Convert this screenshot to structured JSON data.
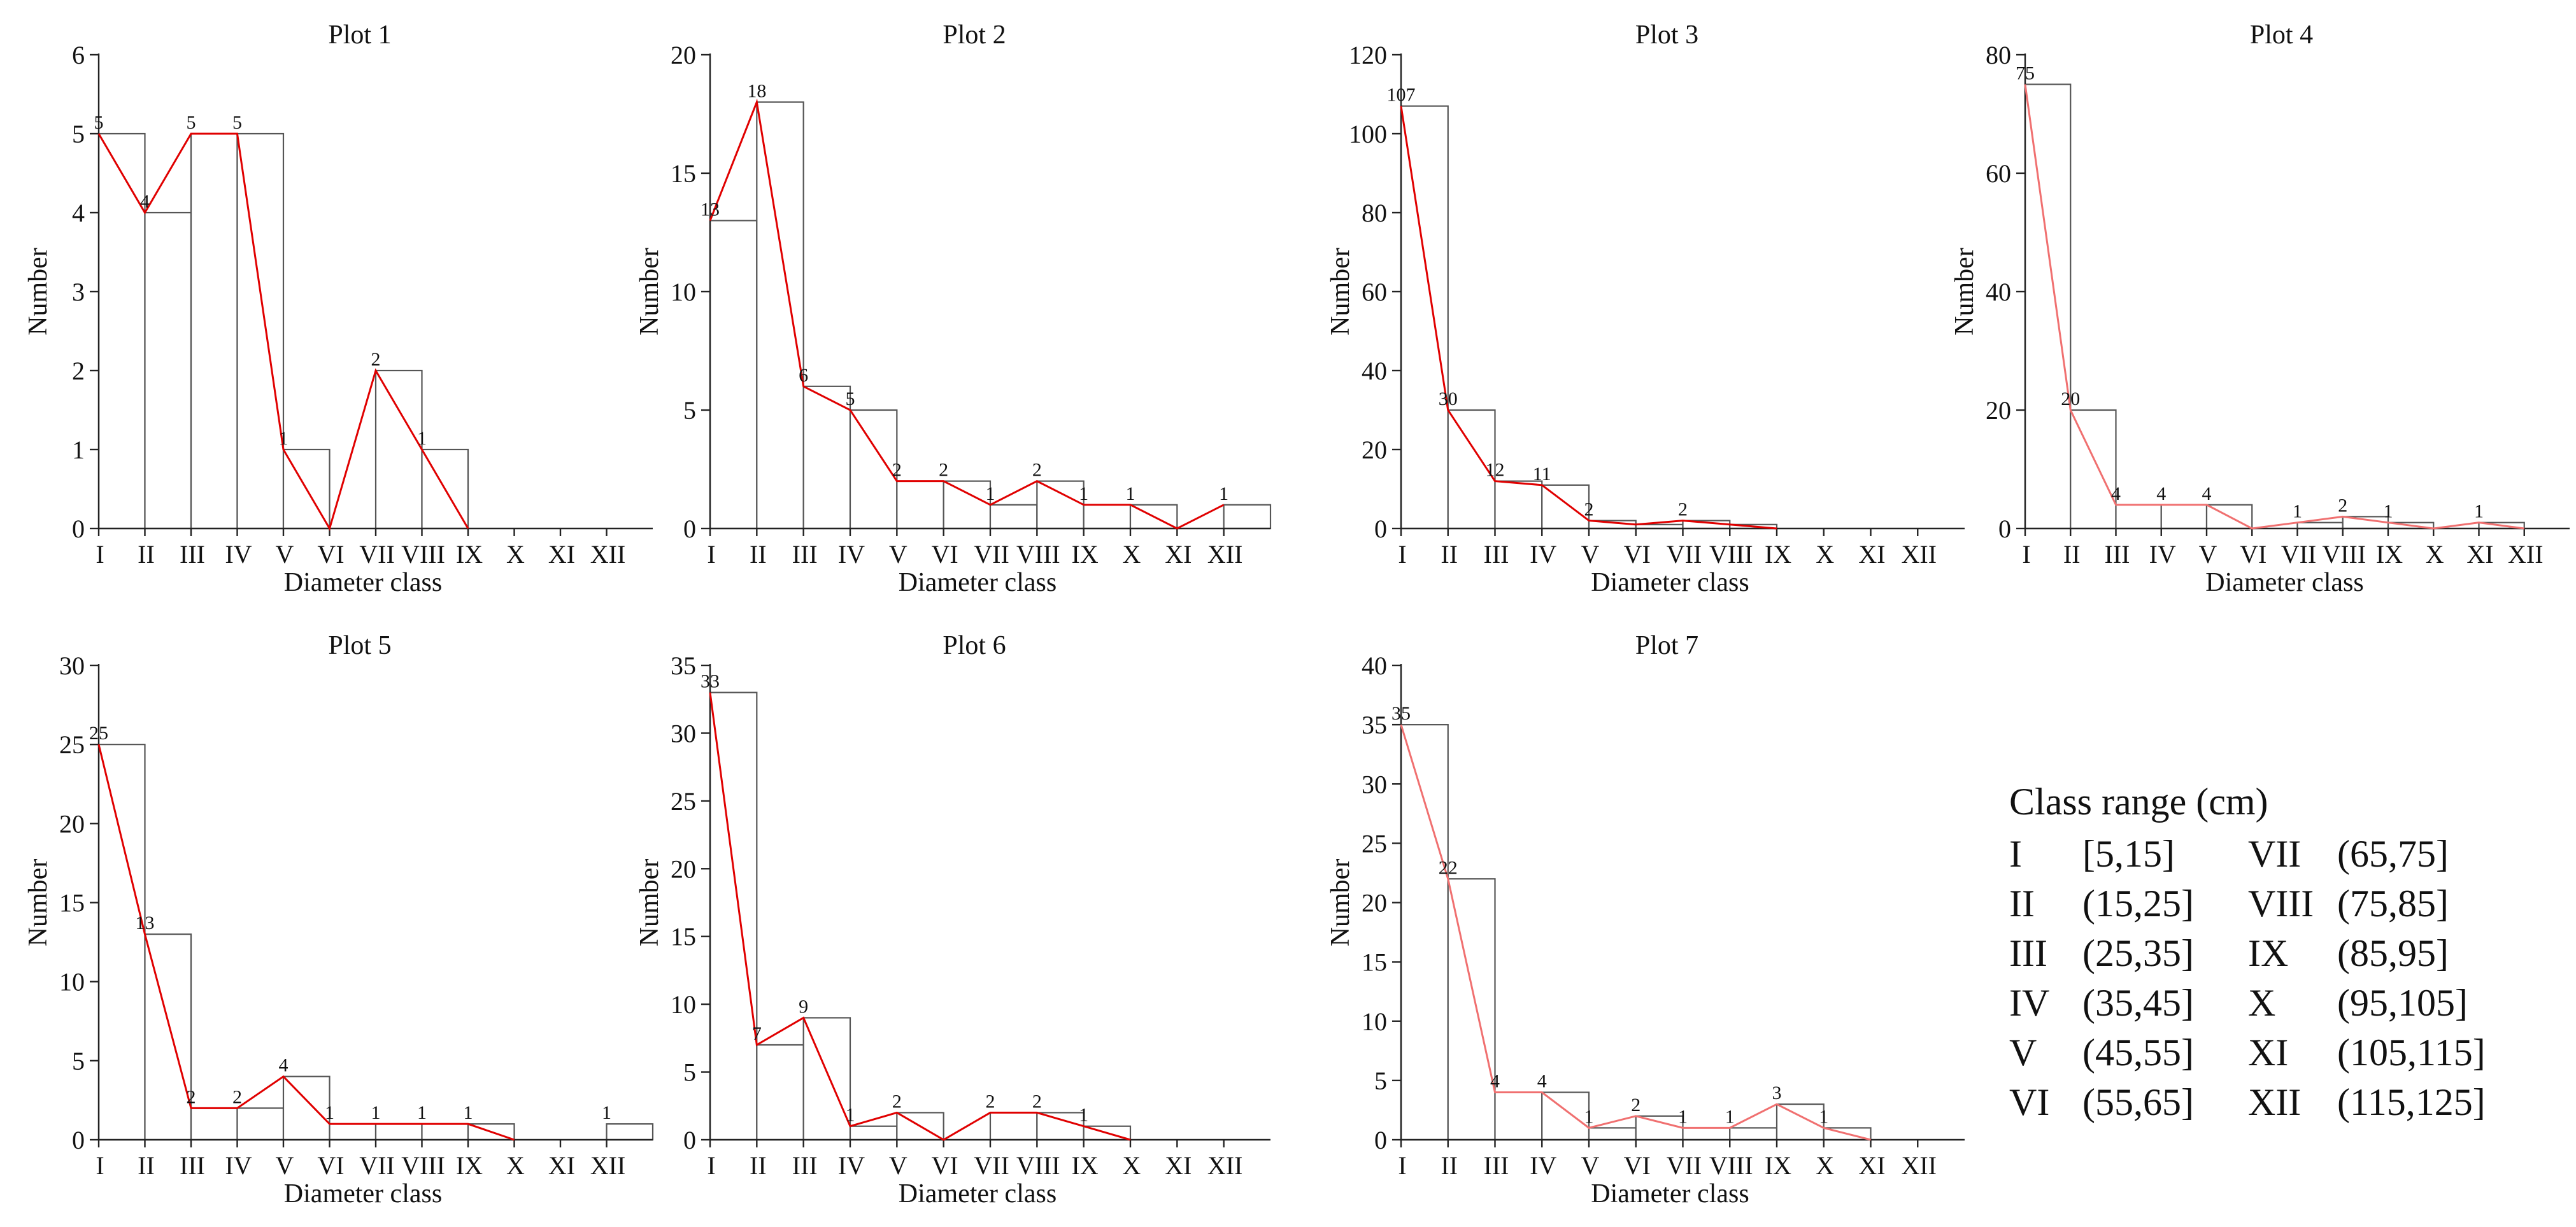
{
  "chart_data": [
    {
      "type": "bar+line",
      "title": "Plot 1",
      "xlabel": "Diameter class",
      "ylabel": "Number",
      "categories": [
        "I",
        "II",
        "III",
        "IV",
        "V",
        "VI",
        "VII",
        "VIII",
        "IX",
        "X",
        "XI",
        "XII"
      ],
      "values": [
        5,
        4,
        5,
        5,
        1,
        0,
        2,
        1,
        0,
        0,
        0,
        0
      ],
      "labels": [
        "5",
        "4",
        "5",
        "5",
        "1",
        "",
        "2",
        "1",
        "",
        "",
        "",
        ""
      ],
      "line_values": [
        5,
        4,
        5,
        5,
        1,
        0,
        2,
        1,
        0
      ],
      "ylim": [
        0,
        6
      ],
      "yticks": [
        0,
        1,
        2,
        3,
        4,
        5,
        6
      ],
      "line_color": "#e00000"
    },
    {
      "type": "bar+line",
      "title": "Plot 2",
      "xlabel": "Diameter class",
      "ylabel": "Number",
      "categories": [
        "I",
        "II",
        "III",
        "IV",
        "V",
        "VI",
        "VII",
        "VIII",
        "IX",
        "X",
        "XI",
        "XII"
      ],
      "values": [
        13,
        18,
        6,
        5,
        2,
        2,
        1,
        2,
        1,
        1,
        0,
        1
      ],
      "labels": [
        "13",
        "18",
        "6",
        "5",
        "2",
        "2",
        "1",
        "2",
        "1",
        "1",
        "",
        "1"
      ],
      "line_values": [
        13,
        18,
        6,
        5,
        2,
        2,
        1,
        2,
        1,
        1,
        0,
        1
      ],
      "ylim": [
        0,
        20
      ],
      "yticks": [
        0,
        5,
        10,
        15,
        20
      ],
      "line_color": "#e00000"
    },
    {
      "type": "bar+line",
      "title": "Plot 3",
      "xlabel": "Diameter class",
      "ylabel": "Number",
      "categories": [
        "I",
        "II",
        "III",
        "IV",
        "V",
        "VI",
        "VII",
        "VIII",
        "IX",
        "X",
        "XI",
        "XII"
      ],
      "values": [
        107,
        30,
        12,
        11,
        2,
        1,
        2,
        1,
        0,
        0,
        0,
        0
      ],
      "labels": [
        "107",
        "30",
        "12",
        "11",
        "2",
        "",
        "2",
        "",
        "",
        "",
        "",
        ""
      ],
      "line_values": [
        107,
        30,
        12,
        11,
        2,
        1,
        2,
        1,
        0
      ],
      "ylim": [
        0,
        120
      ],
      "yticks": [
        0,
        20,
        40,
        60,
        80,
        100,
        120
      ],
      "line_color": "#e00000"
    },
    {
      "type": "bar+line",
      "title": "Plot 4",
      "xlabel": "Diameter class",
      "ylabel": "Number",
      "categories": [
        "I",
        "II",
        "III",
        "IV",
        "V",
        "VI",
        "VII",
        "VIII",
        "IX",
        "X",
        "XI",
        "XII"
      ],
      "values": [
        75,
        20,
        4,
        4,
        4,
        0,
        1,
        2,
        1,
        0,
        1,
        0
      ],
      "labels": [
        "75",
        "20",
        "4",
        "4",
        "4",
        "",
        "1",
        "2",
        "1",
        "",
        "1",
        ""
      ],
      "line_values": [
        75,
        20,
        4,
        4,
        4,
        0,
        1,
        2,
        1,
        0,
        1,
        0
      ],
      "ylim": [
        0,
        80
      ],
      "yticks": [
        0,
        20,
        40,
        60,
        80
      ],
      "line_color": "#f07070"
    },
    {
      "type": "bar+line",
      "title": "Plot 5",
      "xlabel": "Diameter class",
      "ylabel": "Number",
      "categories": [
        "I",
        "II",
        "III",
        "IV",
        "V",
        "VI",
        "VII",
        "VIII",
        "IX",
        "X",
        "XI",
        "XII"
      ],
      "values": [
        25,
        13,
        2,
        2,
        4,
        1,
        1,
        1,
        1,
        0,
        0,
        1
      ],
      "labels": [
        "25",
        "13",
        "2",
        "2",
        "4",
        "1",
        "1",
        "1",
        "1",
        "",
        "",
        "1"
      ],
      "line_values": [
        25,
        13,
        2,
        2,
        4,
        1,
        1,
        1,
        1,
        0,
        null,
        1
      ],
      "ylim": [
        0,
        30
      ],
      "yticks": [
        0,
        5,
        10,
        15,
        20,
        25,
        30
      ],
      "line_color": "#e00000"
    },
    {
      "type": "bar+line",
      "title": "Plot 6",
      "xlabel": "Diameter class",
      "ylabel": "Number",
      "categories": [
        "I",
        "II",
        "III",
        "IV",
        "V",
        "VI",
        "VII",
        "VIII",
        "IX",
        "X",
        "XI",
        "XII"
      ],
      "values": [
        33,
        7,
        9,
        1,
        2,
        0,
        2,
        2,
        1,
        0,
        0,
        0
      ],
      "labels": [
        "33",
        "7",
        "9",
        "1",
        "2",
        "",
        "2",
        "2",
        "1",
        "",
        "",
        ""
      ],
      "line_values": [
        33,
        7,
        9,
        1,
        2,
        0,
        2,
        2,
        1,
        0
      ],
      "ylim": [
        0,
        35
      ],
      "yticks": [
        0,
        5,
        10,
        15,
        20,
        25,
        30,
        35
      ],
      "line_color": "#e00000"
    },
    {
      "type": "bar+line",
      "title": "Plot 7",
      "xlabel": "Diameter class",
      "ylabel": "Number",
      "categories": [
        "I",
        "II",
        "III",
        "IV",
        "V",
        "VI",
        "VII",
        "VIII",
        "IX",
        "X",
        "XI",
        "XII"
      ],
      "values": [
        35,
        22,
        4,
        4,
        1,
        2,
        1,
        1,
        3,
        1,
        0,
        0
      ],
      "labels": [
        "35",
        "22",
        "4",
        "4",
        "1",
        "2",
        "1",
        "1",
        "3",
        "1",
        "",
        ""
      ],
      "line_values": [
        35,
        22,
        4,
        4,
        1,
        2,
        1,
        1,
        3,
        1,
        0
      ],
      "ylim": [
        0,
        40
      ],
      "yticks": [
        0,
        5,
        10,
        15,
        20,
        25,
        30,
        35,
        40
      ],
      "line_color": "#f07070"
    }
  ],
  "legend": {
    "title": "Class range (cm)",
    "left": [
      {
        "cls": "I",
        "range": "[5,15]"
      },
      {
        "cls": "II",
        "range": "(15,25]"
      },
      {
        "cls": "III",
        "range": "(25,35]"
      },
      {
        "cls": "IV",
        "range": "(35,45]"
      },
      {
        "cls": "V",
        "range": "(45,55]"
      },
      {
        "cls": "VI",
        "range": "(55,65]"
      }
    ],
    "right": [
      {
        "cls": "VII",
        "range": "(65,75]"
      },
      {
        "cls": "VIII",
        "range": "(75,85]"
      },
      {
        "cls": "IX",
        "range": "(85,95]"
      },
      {
        "cls": "X",
        "range": "(95,105]"
      },
      {
        "cls": "XI",
        "range": "(105,115]"
      },
      {
        "cls": "XII",
        "range": "(115,125]"
      }
    ]
  }
}
